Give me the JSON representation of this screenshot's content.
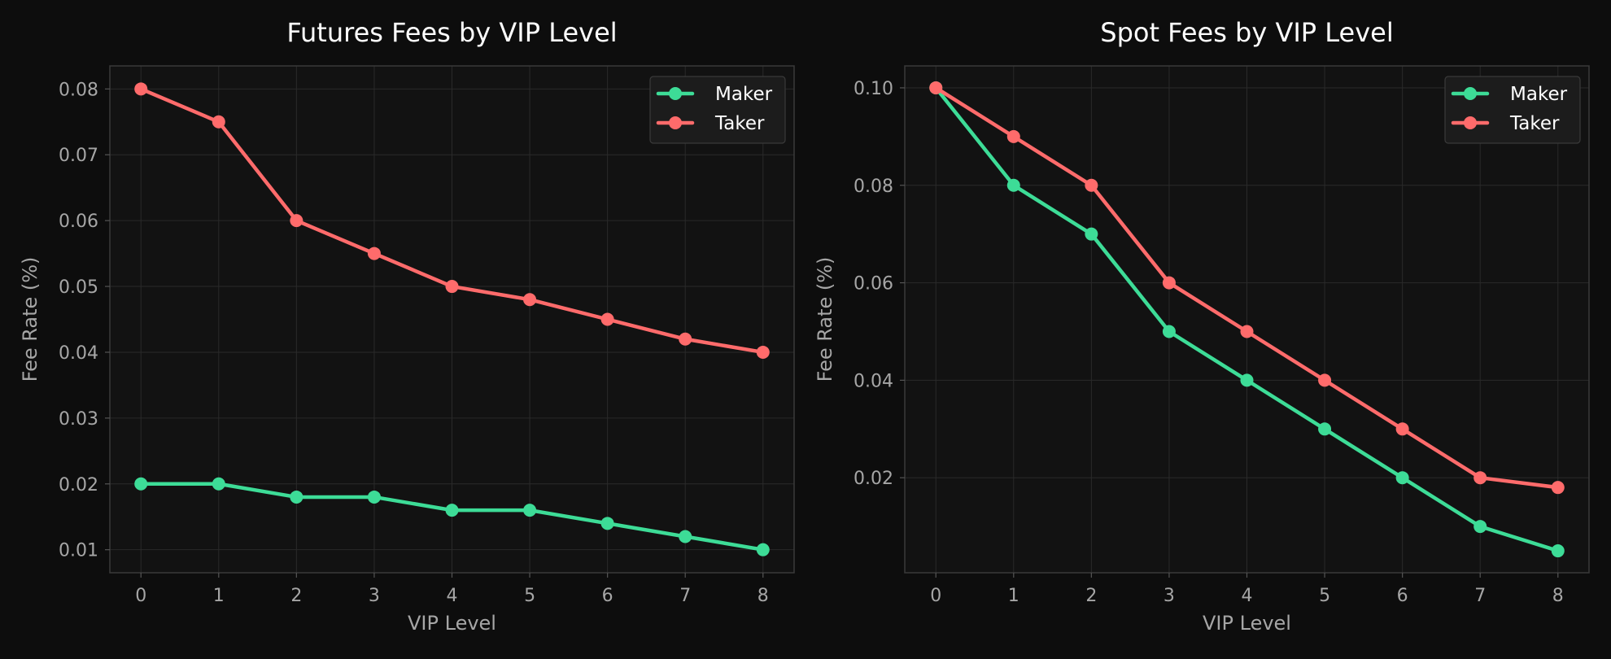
{
  "chart_data": [
    {
      "type": "line",
      "title": "Futures Fees by VIP Level",
      "xlabel": "VIP Level",
      "ylabel": "Fee Rate (%)",
      "x": [
        0,
        1,
        2,
        3,
        4,
        5,
        6,
        7,
        8
      ],
      "xticks": [
        "0",
        "1",
        "2",
        "3",
        "4",
        "5",
        "6",
        "7",
        "8"
      ],
      "yticks": [
        "0.01",
        "0.02",
        "0.03",
        "0.04",
        "0.05",
        "0.06",
        "0.07",
        "0.08"
      ],
      "ytick_values": [
        0.01,
        0.02,
        0.03,
        0.04,
        0.05,
        0.06,
        0.07,
        0.08
      ],
      "xlim": [
        -0.4,
        8.4
      ],
      "ylim": [
        0.0065,
        0.0835
      ],
      "grid": true,
      "legend_position": "top-right",
      "series": [
        {
          "name": "Maker",
          "color": "#3ddc97",
          "values": [
            0.02,
            0.02,
            0.018,
            0.018,
            0.016,
            0.016,
            0.014,
            0.012,
            0.01
          ]
        },
        {
          "name": "Taker",
          "color": "#ff6b6b",
          "values": [
            0.08,
            0.075,
            0.06,
            0.055,
            0.05,
            0.048,
            0.045,
            0.042,
            0.04
          ]
        }
      ]
    },
    {
      "type": "line",
      "title": "Spot Fees by VIP Level",
      "xlabel": "VIP Level",
      "ylabel": "Fee Rate (%)",
      "x": [
        0,
        1,
        2,
        3,
        4,
        5,
        6,
        7,
        8
      ],
      "xticks": [
        "0",
        "1",
        "2",
        "3",
        "4",
        "5",
        "6",
        "7",
        "8"
      ],
      "yticks": [
        "0.02",
        "0.04",
        "0.06",
        "0.08",
        "0.10"
      ],
      "ytick_values": [
        0.02,
        0.04,
        0.06,
        0.08,
        0.1
      ],
      "xlim": [
        -0.4,
        8.4
      ],
      "ylim": [
        0.0005,
        0.1045
      ],
      "grid": true,
      "legend_position": "top-right",
      "series": [
        {
          "name": "Maker",
          "color": "#3ddc97",
          "values": [
            0.1,
            0.08,
            0.07,
            0.05,
            0.04,
            0.03,
            0.02,
            0.01,
            0.005
          ]
        },
        {
          "name": "Taker",
          "color": "#ff6b6b",
          "values": [
            0.1,
            0.09,
            0.08,
            0.06,
            0.05,
            0.04,
            0.03,
            0.02,
            0.018
          ]
        }
      ]
    }
  ]
}
